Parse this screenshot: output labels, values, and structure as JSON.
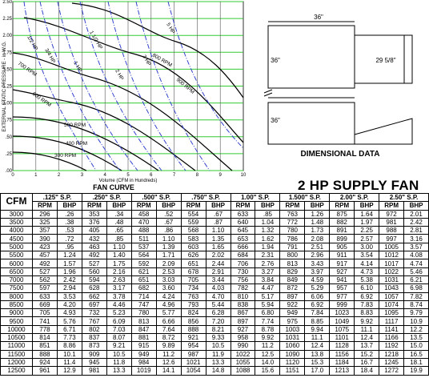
{
  "fan_curve": {
    "title": "FAN CURVE",
    "y_label": "EXTERNAL STATIC PRESSURE - in W.G.",
    "x_label": "Volume (CFM in Hundreds)",
    "y_ticks": [
      "2.50",
      "2.25",
      "2.00",
      "1.75",
      "1.50",
      "1.25",
      "1.00",
      ".75",
      ".50",
      ".25",
      ".00"
    ],
    "x_ticks": [
      "0",
      "1",
      "2",
      "3",
      "4",
      "5",
      "6",
      "7",
      "8",
      "9",
      "10"
    ],
    "rpm_labels": [
      "900 RPM",
      "800 RPM",
      "700 RPM",
      "600 RPM",
      "500 RPM",
      "400 RPM",
      "300 RPM"
    ],
    "hp_labels": [
      "5 HP",
      "3 HP",
      "2 HP",
      "1 1/2 HP",
      "1 HP",
      "3/4 HP",
      "1/2 HP"
    ]
  },
  "dimensional": {
    "title": "DIMENSIONAL DATA",
    "top_width": "36\"",
    "top_height": "36\"",
    "outlet": "29 5/8\"",
    "bottom_height": "36\""
  },
  "table": {
    "title": "2 HP SUPPLY FAN",
    "cfm_header": "CFM",
    "sp_headers": [
      ".125\" S.P.",
      ".250\" S.P.",
      ".500\" S.P.",
      ".750\" S.P.",
      "1.00\" S.P.",
      "1.500\" S.P.",
      "2.00\" S.P.",
      "2.50\" S.P."
    ],
    "sub_headers": [
      "RPM",
      "BHP"
    ],
    "rows": [
      [
        "3000",
        "296",
        ".26",
        "353",
        ".34",
        "458",
        ".52",
        "554",
        ".67",
        "633",
        ".85",
        "763",
        "1.26",
        "875",
        "1.64",
        "972",
        "2.01"
      ],
      [
        "3500",
        "325",
        ".38",
        "376",
        ".48",
        "470",
        ".67",
        "559",
        ".87",
        "640",
        "1.04",
        "772",
        "1.48",
        "882",
        "1.97",
        "981",
        "2.42"
      ],
      [
        "4000",
        "357",
        ".53",
        "405",
        ".65",
        "488",
        ".86",
        "568",
        "1.10",
        "645",
        "1.32",
        "780",
        "1.73",
        "891",
        "2.25",
        "988",
        "2.81"
      ],
      [
        "4500",
        "390",
        ".72",
        "432",
        ".85",
        "511",
        "1.10",
        "583",
        "1.35",
        "653",
        "1.62",
        "786",
        "2.08",
        "899",
        "2.57",
        "997",
        "3.16"
      ],
      [
        "5000",
        "423",
        ".95",
        "463",
        "1.10",
        "537",
        "1.39",
        "603",
        "1.65",
        "666",
        "1.94",
        "791",
        "2.51",
        "905",
        "3.00",
        "1005",
        "3.57"
      ],
      [
        "5500",
        "457",
        "1.24",
        "492",
        "1.40",
        "564",
        "1.71",
        "626",
        "2.02",
        "684",
        "2.31",
        "800",
        "2.96",
        "911",
        "3.54",
        "1012",
        "4.08"
      ],
      [
        "6000",
        "492",
        "1.57",
        "527",
        "1.75",
        "592",
        "2.09",
        "651",
        "2.44",
        "706",
        "2.76",
        "813",
        "3.43",
        "917",
        "4.14",
        "1017",
        "4.74"
      ],
      [
        "6500",
        "527",
        "1.96",
        "560",
        "2.16",
        "621",
        "2.53",
        "678",
        "2.91",
        "730",
        "3.27",
        "829",
        "3.97",
        "927",
        "4.73",
        "1022",
        "5.46"
      ],
      [
        "7000",
        "562",
        "2.42",
        "594",
        "2.63",
        "651",
        "3.03",
        "705",
        "3.44",
        "756",
        "3.84",
        "849",
        "4.59",
        "941",
        "5.38",
        "1031",
        "6.21"
      ],
      [
        "7500",
        "597",
        "2.94",
        "628",
        "3.17",
        "682",
        "3.60",
        "734",
        "4.03",
        "782",
        "4.47",
        "872",
        "5.29",
        "957",
        "6.10",
        "1043",
        "6.98"
      ],
      [
        "8000",
        "633",
        "3.53",
        "662",
        "3.78",
        "714",
        "4.24",
        "763",
        "4.70",
        "810",
        "5.17",
        "897",
        "6.06",
        "977",
        "6.92",
        "1057",
        "7.82"
      ],
      [
        "8500",
        "669",
        "4.20",
        "697",
        "4.46",
        "747",
        "4.96",
        "793",
        "5.44",
        "838",
        "5.94",
        "922",
        "6.92",
        "999",
        "7.83",
        "1074",
        "8.74"
      ],
      [
        "9000",
        "705",
        "4.93",
        "732",
        "5.23",
        "780",
        "5.77",
        "824",
        "6.28",
        "867",
        "6.80",
        "949",
        "7.84",
        "1023",
        "8.83",
        "1095",
        "9.79"
      ],
      [
        "9500",
        "741",
        "5.76",
        "767",
        "6.09",
        "813",
        "6.66",
        "856",
        "7.20",
        "897",
        "7.74",
        "975",
        "8.85",
        "1049",
        "9.92",
        "1117",
        "10.9"
      ],
      [
        "10000",
        "778",
        "6.71",
        "802",
        "7.03",
        "847",
        "7.64",
        "888",
        "8.21",
        "927",
        "8.78",
        "1003",
        "9.94",
        "1075",
        "11.1",
        "1141",
        "12.2"
      ],
      [
        "10500",
        "814",
        "7.73",
        "837",
        "8.07",
        "881",
        "8.72",
        "921",
        "9.33",
        "958",
        "9.92",
        "1031",
        "11.1",
        "1101",
        "12.4",
        "1166",
        "13.5"
      ],
      [
        "11000",
        "851",
        "8.86",
        "873",
        "9.21",
        "915",
        "9.89",
        "954",
        "10.5",
        "990",
        "11.2",
        "1060",
        "12.4",
        "1128",
        "13.7",
        "1192",
        "15.0"
      ],
      [
        "11500",
        "888",
        "10.1",
        "909",
        "10.5",
        "949",
        "11.2",
        "987",
        "11.9",
        "1022",
        "12.5",
        "1090",
        "13.8",
        "1156",
        "15.2",
        "1218",
        "16.5"
      ],
      [
        "12000",
        "924",
        "11.4",
        "945",
        "11.8",
        "984",
        "12.6",
        "1021",
        "13.3",
        "1055",
        "14.0",
        "1120",
        "15.3",
        "1184",
        "16.7",
        "1245",
        "18.1"
      ],
      [
        "12500",
        "961",
        "12.9",
        "981",
        "13.3",
        "1019",
        "14.1",
        "1054",
        "14.8",
        "1088",
        "15.6",
        "1151",
        "17.0",
        "1213",
        "18.4",
        "1272",
        "19.9"
      ]
    ]
  }
}
